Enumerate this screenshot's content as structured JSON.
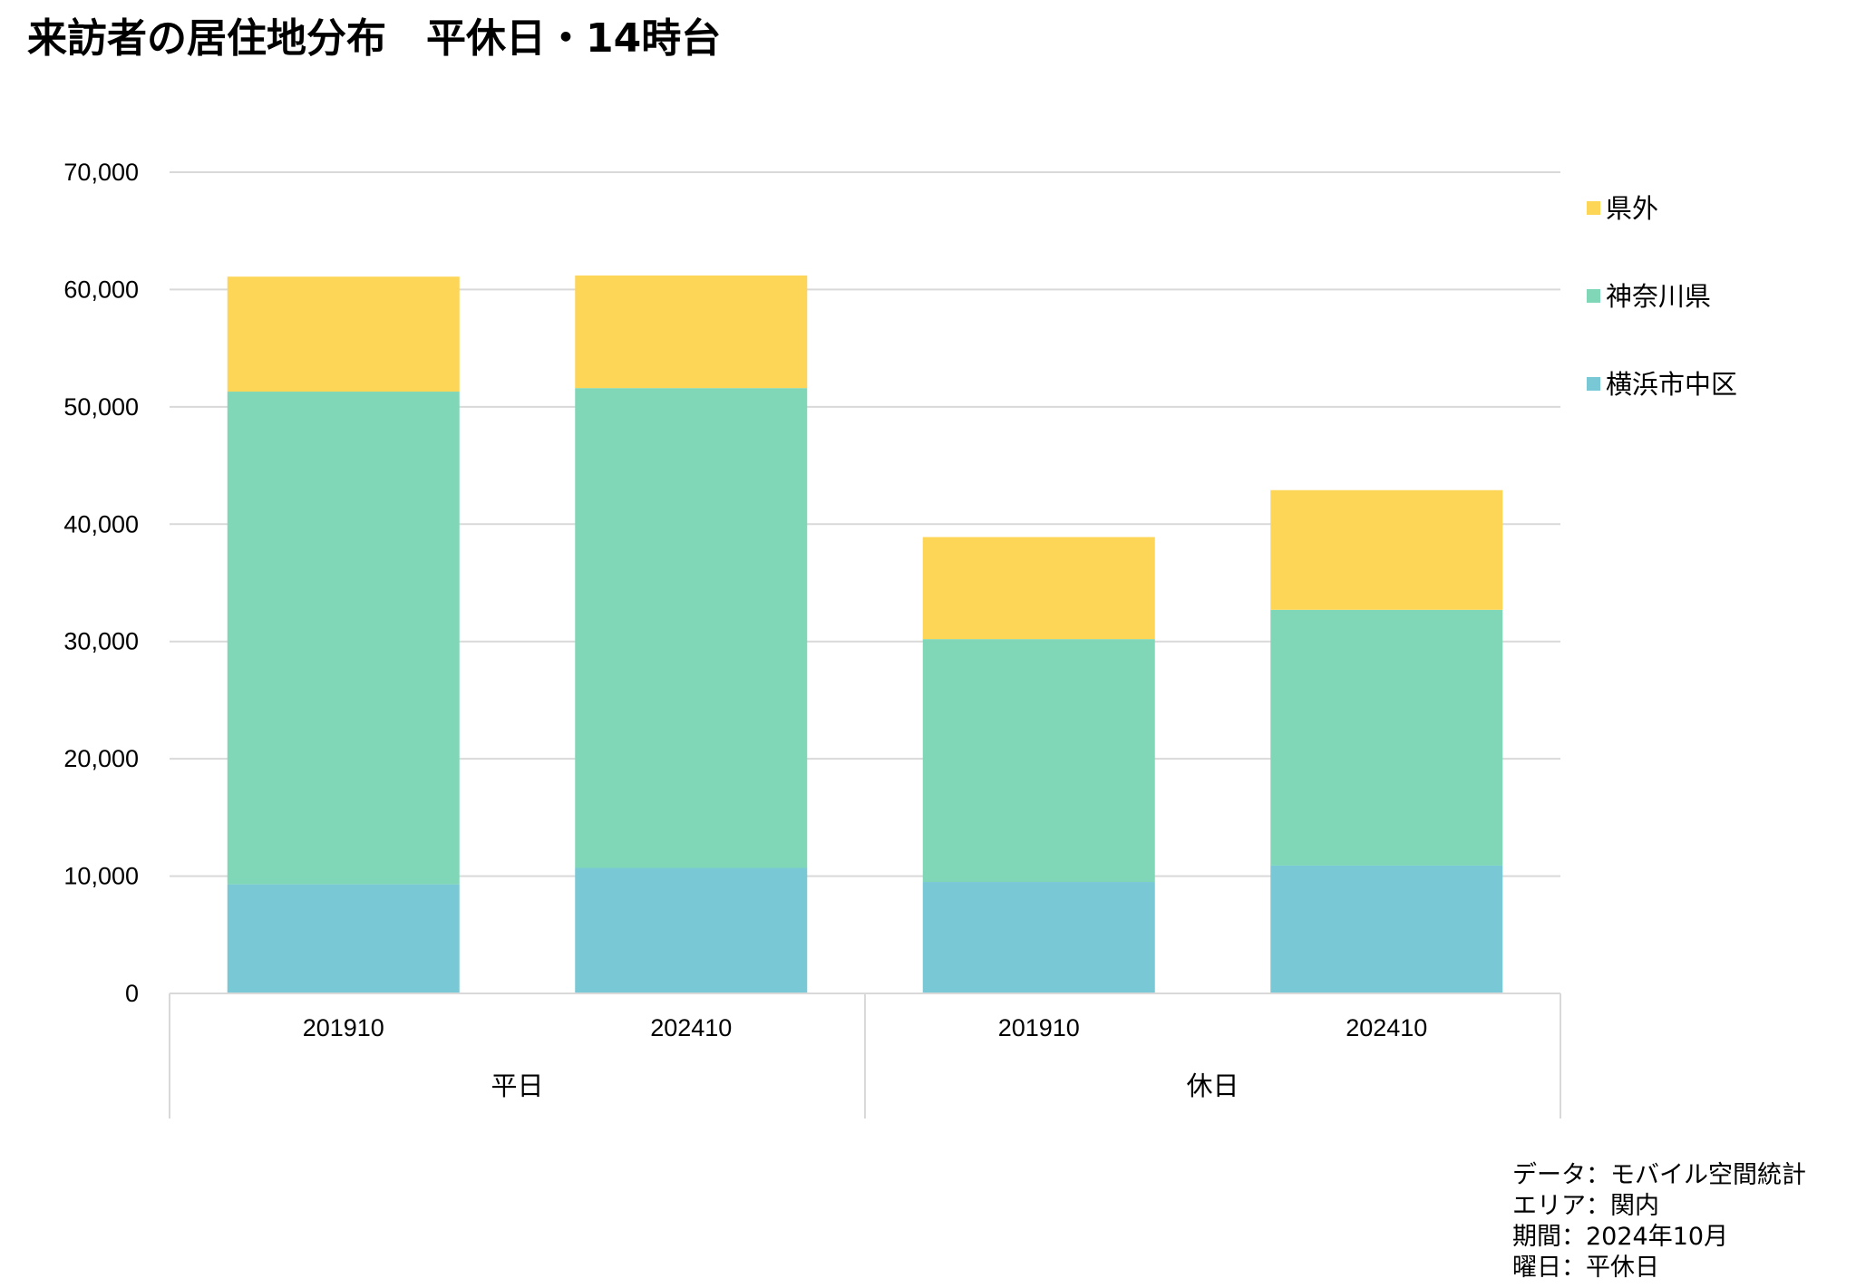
{
  "title": "来訪者の居住地分布　平休日・14時台",
  "chart_data": {
    "type": "bar",
    "stacked": true,
    "categories": [
      "201910",
      "202410",
      "201910",
      "202410"
    ],
    "groups": [
      {
        "label": "平日",
        "categories": [
          "201910",
          "202410"
        ]
      },
      {
        "label": "休日",
        "categories": [
          "201910",
          "202410"
        ]
      }
    ],
    "series": [
      {
        "name": "横浜市中区",
        "color": "#78C8D6",
        "values": [
          9300,
          10700,
          9500,
          10900
        ]
      },
      {
        "name": "神奈川県",
        "color": "#80D7B8",
        "values": [
          42000,
          40900,
          20700,
          21800
        ]
      },
      {
        "name": "県外",
        "color": "#FDD658",
        "values": [
          9800,
          9600,
          8700,
          10200
        ]
      }
    ],
    "ylim": [
      0,
      70000
    ],
    "yticks": [
      0,
      10000,
      20000,
      30000,
      40000,
      50000,
      60000,
      70000
    ],
    "ytick_labels": [
      "0",
      "10,000",
      "20,000",
      "30,000",
      "40,000",
      "50,000",
      "60,000",
      "70,000"
    ],
    "grid": true,
    "legend_position": "right",
    "legend_order": [
      "県外",
      "神奈川県",
      "横浜市中区"
    ]
  },
  "footnote": [
    "データ：モバイル空間統計",
    "エリア：関内",
    "期間：2024年10月",
    "曜日：平休日"
  ]
}
